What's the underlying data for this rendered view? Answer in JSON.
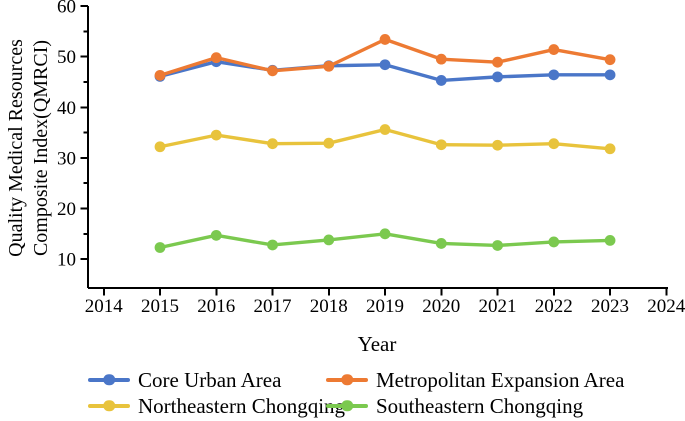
{
  "figure": {
    "y_axis_label_line1": "Quality Medical Resources",
    "y_axis_label_line2": "Composite Index(QMRCI)"
  },
  "chart_data": {
    "type": "line",
    "title": "",
    "xlabel": "Year",
    "ylabel": "Quality Medical Resources Composite Index(QMRCI)",
    "x": [
      2015,
      2016,
      2017,
      2018,
      2019,
      2020,
      2021,
      2022,
      2023
    ],
    "x_ticks": [
      2014,
      2015,
      2016,
      2017,
      2018,
      2019,
      2020,
      2021,
      2022,
      2023,
      2024
    ],
    "y_ticks": [
      10,
      20,
      30,
      40,
      50,
      60
    ],
    "y_minor_ticks": [
      15,
      25,
      35,
      45,
      55
    ],
    "xlim": [
      2013.72,
      2024.03
    ],
    "ylim": [
      4.3,
      60
    ],
    "grid": false,
    "legend_position": "bottom",
    "axis_color": "#000000",
    "series": [
      {
        "name": "Core Urban Area",
        "color": "#4a76c8",
        "values": [
          46.1,
          49.0,
          47.3,
          48.2,
          48.4,
          45.3,
          46.0,
          46.4,
          46.4
        ]
      },
      {
        "name": "Metropolitan Expansion Area",
        "color": "#ed7a33",
        "values": [
          46.3,
          49.8,
          47.2,
          48.1,
          53.4,
          49.5,
          48.9,
          51.4,
          49.4
        ]
      },
      {
        "name": "Northeastern Chongqing",
        "color": "#e8c33c",
        "values": [
          32.2,
          34.5,
          32.8,
          32.9,
          35.6,
          32.6,
          32.5,
          32.8,
          31.8
        ]
      },
      {
        "name": "Southeastern Chongqing",
        "color": "#7bc94f",
        "values": [
          12.3,
          14.7,
          12.8,
          13.8,
          15.0,
          13.1,
          12.7,
          13.4,
          13.7
        ]
      }
    ]
  }
}
